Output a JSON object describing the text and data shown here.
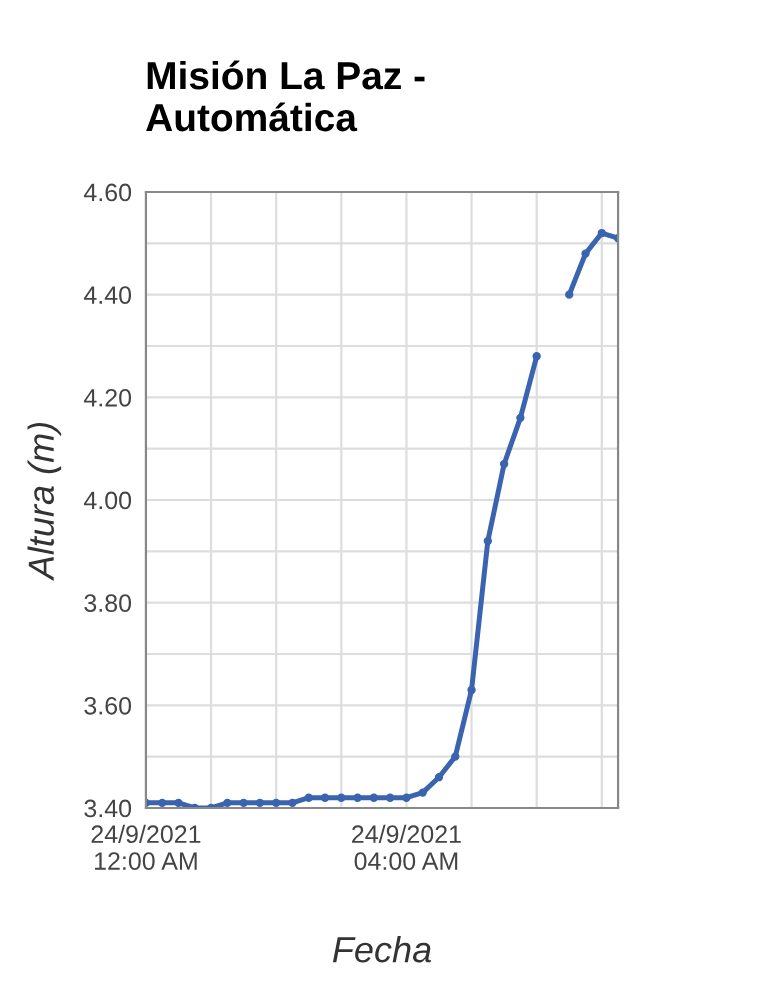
{
  "chart_data": {
    "type": "line",
    "title": "Misión La Paz -\nAutomática",
    "xlabel": "Fecha",
    "ylabel": "Altura (m)",
    "x": [
      "2021-09-24T00:00",
      "2021-09-24T00:15",
      "2021-09-24T00:30",
      "2021-09-24T00:45",
      "2021-09-24T01:00",
      "2021-09-24T01:15",
      "2021-09-24T01:30",
      "2021-09-24T01:45",
      "2021-09-24T02:00",
      "2021-09-24T02:15",
      "2021-09-24T02:30",
      "2021-09-24T02:45",
      "2021-09-24T03:00",
      "2021-09-24T03:15",
      "2021-09-24T03:30",
      "2021-09-24T03:45",
      "2021-09-24T04:00",
      "2021-09-24T04:15",
      "2021-09-24T04:30",
      "2021-09-24T04:45",
      "2021-09-24T05:00",
      "2021-09-24T05:15",
      "2021-09-24T05:30",
      "2021-09-24T05:45",
      "2021-09-24T06:00",
      "2021-09-24T06:15",
      "2021-09-24T06:30",
      "2021-09-24T06:45",
      "2021-09-24T07:00",
      "2021-09-24T07:15"
    ],
    "series": [
      {
        "color": "#3a63b0",
        "values": [
          3.41,
          3.41,
          3.41,
          3.4,
          3.4,
          3.41,
          3.41,
          3.41,
          3.41,
          3.41,
          3.42,
          3.42,
          3.42,
          3.42,
          3.42,
          3.42,
          3.42,
          3.43,
          3.46,
          3.5,
          3.63,
          3.92,
          4.07,
          4.16,
          4.28,
          null,
          4.4,
          4.48,
          4.52,
          4.51
        ]
      }
    ],
    "xlim": [
      "2021-09-24T00:00",
      "2021-09-24T07:15"
    ],
    "xticks": [
      {
        "value": "2021-09-24T00:00",
        "label": "24/9/2021\n12:00 AM"
      },
      {
        "value": "2021-09-24T01:00",
        "label": null
      },
      {
        "value": "2021-09-24T02:00",
        "label": null
      },
      {
        "value": "2021-09-24T03:00",
        "label": null
      },
      {
        "value": "2021-09-24T04:00",
        "label": "24/9/2021\n04:00 AM"
      },
      {
        "value": "2021-09-24T05:00",
        "label": null
      },
      {
        "value": "2021-09-24T06:00",
        "label": null
      },
      {
        "value": "2021-09-24T07:00",
        "label": null
      }
    ],
    "ylim": [
      3.4,
      4.6
    ],
    "yticks": [
      {
        "value": 3.4,
        "label": "3.40"
      },
      {
        "value": 3.5,
        "label": null
      },
      {
        "value": 3.6,
        "label": "3.60"
      },
      {
        "value": 3.7,
        "label": null
      },
      {
        "value": 3.8,
        "label": "3.80"
      },
      {
        "value": 3.9,
        "label": null
      },
      {
        "value": 4.0,
        "label": "4.00"
      },
      {
        "value": 4.1,
        "label": null
      },
      {
        "value": 4.2,
        "label": "4.20"
      },
      {
        "value": 4.3,
        "label": null
      },
      {
        "value": 4.4,
        "label": "4.40"
      },
      {
        "value": 4.5,
        "label": null
      },
      {
        "value": 4.6,
        "label": "4.60"
      }
    ],
    "grid": true,
    "marker": "circle",
    "line_style": "solid"
  }
}
